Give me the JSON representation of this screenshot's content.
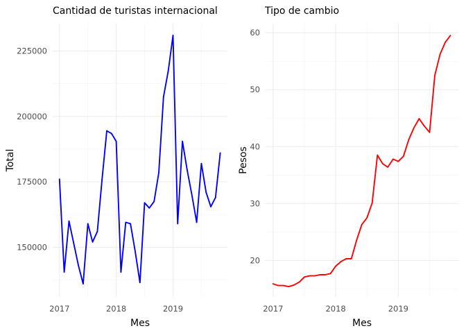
{
  "chart_data": [
    {
      "type": "line",
      "title": "Cantidad de turistas internacional",
      "xlabel": "Mes",
      "ylabel": "Total",
      "x_tick_labels": [
        "2017",
        "2018",
        "2019"
      ],
      "y_tick_labels": [
        "150000",
        "175000",
        "200000",
        "225000"
      ],
      "xlim": [
        2016.88,
        2019.96
      ],
      "ylim": [
        131000,
        235500
      ],
      "grid": true,
      "series": [
        {
          "color": "#0000ff",
          "x": [
            2017.0,
            2017.083,
            2017.167,
            2017.25,
            2017.333,
            2017.417,
            2017.5,
            2017.583,
            2017.667,
            2017.75,
            2017.833,
            2017.917,
            2018.0,
            2018.083,
            2018.167,
            2018.25,
            2018.333,
            2018.417,
            2018.5,
            2018.583,
            2018.667,
            2018.75,
            2018.833,
            2018.917,
            2019.0,
            2019.083,
            2019.167,
            2019.25,
            2019.333,
            2019.417,
            2019.5,
            2019.583,
            2019.667,
            2019.75,
            2019.833
          ],
          "values": [
            176000,
            140500,
            160000,
            151500,
            143000,
            136000,
            159000,
            152000,
            156000,
            176000,
            194500,
            193500,
            190500,
            140500,
            159500,
            159000,
            148500,
            136500,
            167000,
            165000,
            167500,
            178500,
            207500,
            217500,
            231000,
            159000,
            190500,
            179500,
            170000,
            159500,
            182000,
            171000,
            165500,
            169000,
            186000
          ]
        }
      ]
    },
    {
      "type": "line",
      "title": "Tipo de cambio",
      "xlabel": "Mes",
      "ylabel": "Pesos",
      "x_tick_labels": [
        "2017",
        "2018",
        "2019"
      ],
      "y_tick_labels": [
        "20",
        "30",
        "40",
        "50",
        "60"
      ],
      "xlim": [
        2016.88,
        2019.96
      ],
      "ylim": [
        13.6,
        61.6
      ],
      "grid": true,
      "series": [
        {
          "color": "#ff0000",
          "x": [
            2017.0,
            2017.083,
            2017.167,
            2017.25,
            2017.333,
            2017.417,
            2017.5,
            2017.583,
            2017.667,
            2017.75,
            2017.833,
            2017.917,
            2018.0,
            2018.083,
            2018.167,
            2018.25,
            2018.333,
            2018.417,
            2018.5,
            2018.583,
            2018.667,
            2018.75,
            2018.833,
            2018.917,
            2019.0,
            2019.083,
            2019.167,
            2019.25,
            2019.333,
            2019.417,
            2019.5,
            2019.583,
            2019.667,
            2019.75,
            2019.833
          ],
          "values": [
            15.9,
            15.6,
            15.6,
            15.4,
            15.7,
            16.2,
            17.1,
            17.3,
            17.3,
            17.5,
            17.5,
            17.7,
            19.0,
            19.8,
            20.3,
            20.3,
            23.5,
            26.3,
            27.5,
            30.1,
            38.5,
            37.0,
            36.4,
            37.8,
            37.4,
            38.3,
            41.2,
            43.3,
            44.9,
            43.6,
            42.5,
            52.5,
            56.2,
            58.3,
            59.5
          ]
        }
      ]
    }
  ]
}
